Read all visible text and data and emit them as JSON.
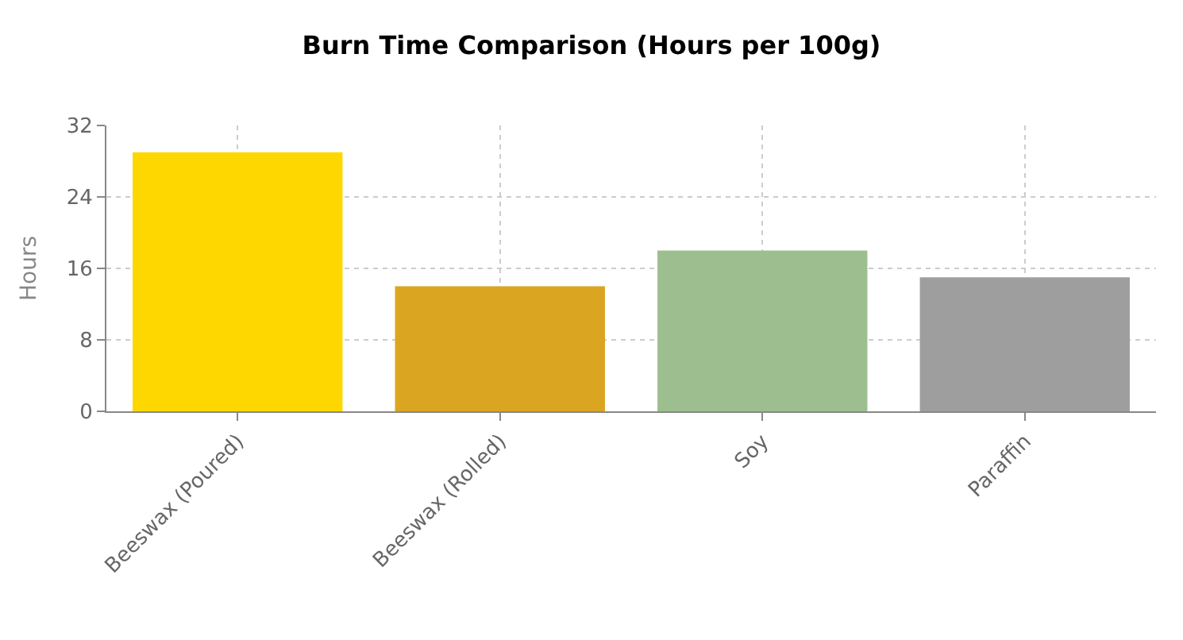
{
  "chart_data": {
    "type": "bar",
    "title": "Burn Time Comparison (Hours per 100g)",
    "ylabel": "Hours",
    "categories": [
      "Beeswax (Poured)",
      "Beeswax (Rolled)",
      "Soy",
      "Paraffin"
    ],
    "values": [
      29,
      14,
      18,
      15
    ],
    "colors": [
      "#ffd700",
      "#daa520",
      "#9dbf8f",
      "#9e9e9e"
    ],
    "ylim": [
      0,
      32
    ],
    "yticks": [
      0,
      8,
      16,
      24,
      32
    ],
    "grid": true
  }
}
